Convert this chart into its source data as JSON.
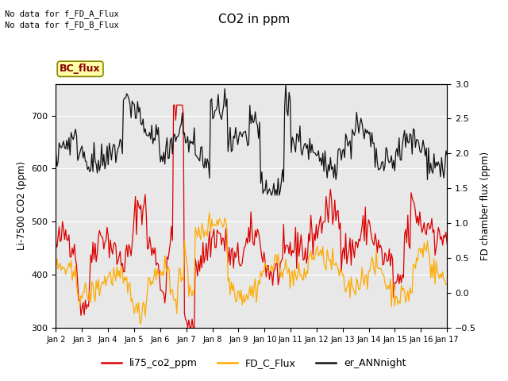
{
  "title": "CO2 in ppm",
  "ylabel_left": "Li-7500 CO2 (ppm)",
  "ylabel_right": "FD chamber flux (ppm)",
  "ylim_left": [
    300,
    760
  ],
  "ylim_right": [
    -0.5,
    3.0
  ],
  "text_annotations": [
    "No data for f_FD_A_Flux",
    "No data for f_FD_B_Flux"
  ],
  "bc_flux_label": "BC_flux",
  "legend_labels": [
    "li75_co2_ppm",
    "FD_C_Flux",
    "er_ANNnight"
  ],
  "line_colors_hex": [
    "#dd0000",
    "#ffaa00",
    "#111111"
  ],
  "n_points": 360,
  "x_tick_labels": [
    "Jan 2",
    "Jan 3",
    "Jan 4",
    "Jan 5",
    "Jan 6",
    "Jan 7",
    "Jan 8",
    "Jan 9",
    "Jan 10",
    "Jan 11",
    "Jan 12",
    "Jan 13",
    "Jan 14",
    "Jan 15",
    "Jan 16",
    "Jan 17"
  ],
  "x_tick_positions": [
    0,
    24,
    48,
    72,
    96,
    120,
    144,
    168,
    192,
    216,
    240,
    264,
    288,
    312,
    336,
    360
  ]
}
